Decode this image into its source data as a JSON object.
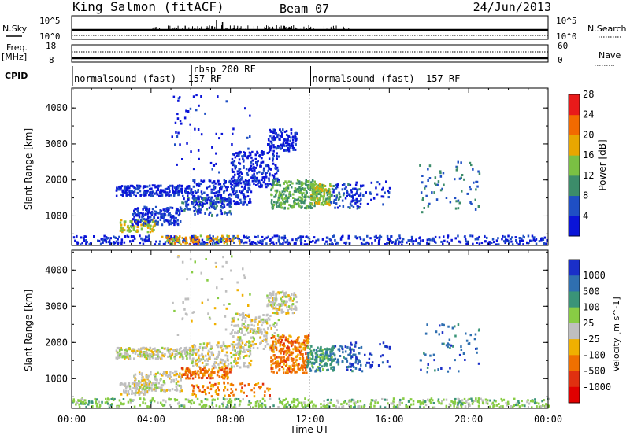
{
  "header": {
    "station": "King Salmon (fitACF)",
    "beam": "Beam 07",
    "date": "24/Jun/2013"
  },
  "top_panels": {
    "nsky_label": "N.Sky",
    "nsearch_label": "N.Search",
    "nsky_ticks": [
      "10^5",
      "10^0"
    ],
    "nsearch_ticks": [
      "10^5",
      "10^0"
    ],
    "freq_label": "Freq.",
    "freq_unit": "[MHz]",
    "freq_ticks": [
      "18",
      "8"
    ],
    "nave_label": "Nave",
    "nave_ticks": [
      "60",
      "0"
    ],
    "cpid_label": "CPID",
    "cpid_segments": [
      {
        "label": "normalsound (fast) -157 RF",
        "start_hour": 0,
        "end_hour": 6
      },
      {
        "label": "rbsp 200 RF",
        "start_hour": 6,
        "end_hour": 12
      },
      {
        "label": "normalsound (fast) -157 RF",
        "start_hour": 12,
        "end_hour": 24
      }
    ]
  },
  "axes": {
    "xlabel": "Time UT",
    "xticks": [
      "00:00",
      "04:00",
      "08:00",
      "12:00",
      "16:00",
      "20:00",
      "00:00"
    ],
    "ylabel": "Slant Range [km]",
    "yticks": [
      "1000",
      "2000",
      "3000",
      "4000"
    ]
  },
  "power_colorbar": {
    "label": "Power [dB]",
    "ticks": [
      "4",
      "8",
      "12",
      "16",
      "20",
      "24",
      "28"
    ],
    "colors": [
      "#0a14d8",
      "#1f4fc4",
      "#3c8c6a",
      "#7ac043",
      "#e8a600",
      "#f26a00",
      "#e81a1a"
    ]
  },
  "velocity_colorbar": {
    "label": "Velocity [m s^-1]",
    "ticks": [
      "1000",
      "500",
      "100",
      "25",
      "-25",
      "-100",
      "-500",
      "-1000"
    ],
    "colors": [
      "#1a2fc8",
      "#2f6fb0",
      "#3a9478",
      "#88cc44",
      "#bfbfbf",
      "#f0b000",
      "#f07000",
      "#e03010",
      "#e00000"
    ]
  },
  "chart_data": [
    {
      "type": "heatmap",
      "panel": "power",
      "x_range_hours": [
        0,
        24
      ],
      "y_range_km": [
        180,
        4550
      ],
      "blobs": [
        {
          "x": [
            2.4,
            4.2
          ],
          "y": [
            550,
            900
          ],
          "level": 18,
          "n": 90
        },
        {
          "x": [
            3.0,
            5.5
          ],
          "y": [
            750,
            1250
          ],
          "level": 6,
          "n": 160
        },
        {
          "x": [
            2.2,
            6.0
          ],
          "y": [
            1550,
            1850
          ],
          "level": 5,
          "n": 220
        },
        {
          "x": [
            6.0,
            9.0
          ],
          "y": [
            1300,
            2000
          ],
          "level": 5,
          "n": 220
        },
        {
          "x": [
            5.5,
            8.0
          ],
          "y": [
            1000,
            1500
          ],
          "level": 8,
          "n": 120
        },
        {
          "x": [
            8.0,
            10.4
          ],
          "y": [
            1800,
            2800
          ],
          "level": 4,
          "n": 220
        },
        {
          "x": [
            9.8,
            11.3
          ],
          "y": [
            2800,
            3400
          ],
          "level": 4,
          "n": 120
        },
        {
          "x": [
            10.0,
            12.2
          ],
          "y": [
            1200,
            2000
          ],
          "level": 14,
          "n": 240
        },
        {
          "x": [
            12.0,
            13.0
          ],
          "y": [
            1300,
            1900
          ],
          "level": 16,
          "n": 140
        },
        {
          "x": [
            13.0,
            14.6
          ],
          "y": [
            1200,
            1900
          ],
          "level": 7,
          "n": 80
        },
        {
          "x": [
            14.0,
            16.0
          ],
          "y": [
            1300,
            2000
          ],
          "level": 4,
          "n": 40
        },
        {
          "x": [
            17.5,
            20.5
          ],
          "y": [
            1100,
            2500
          ],
          "level": 10,
          "n": 70
        },
        {
          "x": [
            5.0,
            9.0
          ],
          "y": [
            2200,
            4400
          ],
          "level": 4,
          "n": 60
        },
        {
          "x": [
            0.0,
            24.0
          ],
          "y": [
            200,
            450
          ],
          "level": 5,
          "n": 500
        },
        {
          "x": [
            4.5,
            8.5
          ],
          "y": [
            200,
            450
          ],
          "level": 20,
          "n": 90
        }
      ]
    },
    {
      "type": "heatmap",
      "panel": "velocity",
      "x_range_hours": [
        0,
        24
      ],
      "y_range_km": [
        180,
        4550
      ],
      "blobs": [
        {
          "x": [
            2.4,
            4.2
          ],
          "y": [
            550,
            900
          ],
          "level": 4,
          "n": 90
        },
        {
          "x": [
            3.0,
            5.5
          ],
          "y": [
            650,
            1200
          ],
          "level": 4,
          "n": 140
        },
        {
          "x": [
            2.2,
            6.0
          ],
          "y": [
            1550,
            1850
          ],
          "level": 4,
          "n": 220
        },
        {
          "x": [
            6.0,
            9.0
          ],
          "y": [
            1300,
            2000
          ],
          "level": 4,
          "n": 200
        },
        {
          "x": [
            5.5,
            8.0
          ],
          "y": [
            1000,
            1300
          ],
          "level": 6,
          "n": 120
        },
        {
          "x": [
            8.0,
            10.4
          ],
          "y": [
            1800,
            2800
          ],
          "level": 4,
          "n": 200
        },
        {
          "x": [
            9.8,
            11.3
          ],
          "y": [
            2800,
            3400
          ],
          "level": 4,
          "n": 120
        },
        {
          "x": [
            10.0,
            11.9
          ],
          "y": [
            1150,
            2200
          ],
          "level": 6,
          "n": 260
        },
        {
          "x": [
            11.8,
            13.2
          ],
          "y": [
            1200,
            1900
          ],
          "level": 2,
          "n": 160
        },
        {
          "x": [
            13.2,
            14.6
          ],
          "y": [
            1200,
            1900
          ],
          "level": 1,
          "n": 70
        },
        {
          "x": [
            14.0,
            16.0
          ],
          "y": [
            1300,
            2000
          ],
          "level": 0,
          "n": 40
        },
        {
          "x": [
            17.5,
            20.5
          ],
          "y": [
            1100,
            2500
          ],
          "level": 1,
          "n": 60
        },
        {
          "x": [
            5.0,
            9.0
          ],
          "y": [
            2200,
            4400
          ],
          "level": 4,
          "n": 60
        },
        {
          "x": [
            0.0,
            24.0
          ],
          "y": [
            200,
            450
          ],
          "level": 3,
          "n": 500
        },
        {
          "x": [
            6.0,
            10.0
          ],
          "y": [
            500,
            900
          ],
          "level": 6,
          "n": 80
        }
      ]
    }
  ]
}
